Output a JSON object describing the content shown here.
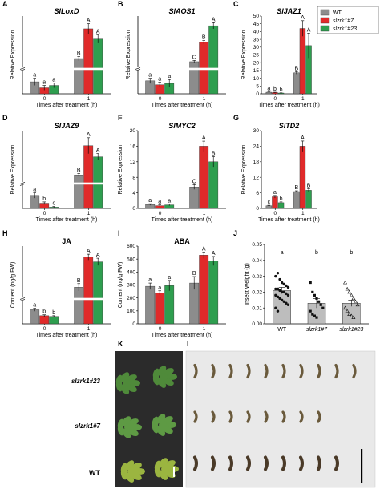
{
  "panel_labels": [
    "A",
    "B",
    "C",
    "D",
    "F",
    "G",
    "H",
    "I",
    "J",
    "K",
    "L"
  ],
  "legend": {
    "entries": [
      {
        "label": "WT",
        "color": "#8c8c8c"
      },
      {
        "label": "slzrk1#7",
        "color": "#e02a2a"
      },
      {
        "label": "slzrk1#23",
        "color": "#2e9e4f"
      }
    ]
  },
  "colors": {
    "WT": "#8c8c8c",
    "slzrk1#7": "#e02a2a",
    "slzrk1#23": "#2e9e4f"
  },
  "chart_data": [
    {
      "id": "A",
      "type": "bar",
      "title": "SlLoxD",
      "title_italic": true,
      "xlabel": "Times after treatment (h)",
      "ylabel": "Relative Expression",
      "categories": [
        "0",
        "1"
      ],
      "axis_break": true,
      "yticks": [],
      "series": [
        {
          "name": "WT",
          "values": [
            1.0,
            85
          ],
          "err": [
            0.3,
            6
          ],
          "sig": [
            "a",
            "B"
          ]
        },
        {
          "name": "slzrk1#7",
          "values": [
            0.5,
            172
          ],
          "err": [
            0.2,
            15
          ],
          "sig": [
            "a",
            "A"
          ]
        },
        {
          "name": "slzrk1#23",
          "values": [
            0.7,
            142
          ],
          "err": [
            0.2,
            12
          ],
          "sig": [
            "a",
            "A"
          ]
        }
      ]
    },
    {
      "id": "B",
      "type": "bar",
      "title": "SlAOS1",
      "title_italic": true,
      "xlabel": "Times after treatment (h)",
      "ylabel": "Relative Expression",
      "categories": [
        "0",
        "1"
      ],
      "axis_break": true,
      "yticks": [],
      "series": [
        {
          "name": "WT",
          "values": [
            1.0,
            80
          ],
          "err": [
            0.2,
            6
          ],
          "sig": [
            "a",
            "C"
          ]
        },
        {
          "name": "slzrk1#7",
          "values": [
            0.7,
            175
          ],
          "err": [
            0.2,
            8
          ],
          "sig": [
            "a",
            "B"
          ]
        },
        {
          "name": "slzrk1#23",
          "values": [
            0.8,
            255
          ],
          "err": [
            0.3,
            15
          ],
          "sig": [
            "a",
            "A"
          ]
        }
      ]
    },
    {
      "id": "C",
      "type": "bar",
      "title": "SlJAZ1",
      "title_italic": true,
      "xlabel": "Times after treatment (h)",
      "ylabel": "Relative Expression",
      "categories": [
        "0",
        "1"
      ],
      "axis_break": false,
      "yticks": [
        "0",
        "5",
        "10",
        "15",
        "20",
        "25",
        "30",
        "35",
        "40",
        "45",
        "50"
      ],
      "ylim": [
        0,
        50
      ],
      "series": [
        {
          "name": "WT",
          "values": [
            1.0,
            13.5
          ],
          "err": [
            0.2,
            0.8
          ],
          "sig": [
            "a",
            "B"
          ]
        },
        {
          "name": "slzrk1#7",
          "values": [
            0.8,
            42
          ],
          "err": [
            0.2,
            5
          ],
          "sig": [
            "b",
            "A"
          ]
        },
        {
          "name": "slzrk1#23",
          "values": [
            0.5,
            31
          ],
          "err": [
            0.1,
            8
          ],
          "sig": [
            "b",
            "A"
          ]
        }
      ]
    },
    {
      "id": "D",
      "type": "bar",
      "title": "SlJAZ9",
      "title_italic": true,
      "xlabel": "Times after treatment (h)",
      "ylabel": "Relative Expression",
      "categories": [
        "0",
        "1"
      ],
      "axis_break": true,
      "yticks": [],
      "series": [
        {
          "name": "WT",
          "values": [
            1.0,
            68
          ],
          "err": [
            0.2,
            5
          ],
          "sig": [
            "a",
            "B"
          ]
        },
        {
          "name": "slzrk1#7",
          "values": [
            0.4,
            160
          ],
          "err": [
            0.1,
            25
          ],
          "sig": [
            "b",
            "A"
          ]
        },
        {
          "name": "slzrk1#23",
          "values": [
            0.1,
            125
          ],
          "err": [
            0.05,
            10
          ],
          "sig": [
            "c",
            "A"
          ]
        }
      ]
    },
    {
      "id": "F",
      "type": "bar",
      "title": "SlMYC2",
      "title_italic": true,
      "xlabel": "Times after treatment (h)",
      "ylabel": "Relative Expression",
      "categories": [
        "0",
        "1"
      ],
      "axis_break": false,
      "yticks": [
        "0",
        "4",
        "8",
        "12",
        "16",
        "20"
      ],
      "ylim": [
        0,
        20
      ],
      "series": [
        {
          "name": "WT",
          "values": [
            1.0,
            5.5
          ],
          "err": [
            0.2,
            0.6
          ],
          "sig": [
            "a",
            "C"
          ]
        },
        {
          "name": "slzrk1#7",
          "values": [
            0.7,
            16
          ],
          "err": [
            0.2,
            1.3
          ],
          "sig": [
            "a",
            "A"
          ]
        },
        {
          "name": "slzrk1#23",
          "values": [
            0.9,
            12
          ],
          "err": [
            0.2,
            1.3
          ],
          "sig": [
            "a",
            "B"
          ]
        }
      ]
    },
    {
      "id": "G",
      "type": "bar",
      "title": "SlTD2",
      "title_italic": true,
      "xlabel": "Times after treatment (h)",
      "ylabel": "Relative Expression",
      "categories": [
        "0",
        "1"
      ],
      "axis_break": false,
      "yticks": [
        "0",
        "6",
        "12",
        "18",
        "24",
        "30"
      ],
      "ylim": [
        0,
        30
      ],
      "series": [
        {
          "name": "WT",
          "values": [
            1.0,
            6.5
          ],
          "err": [
            0.2,
            0.3
          ],
          "sig": [
            "c",
            "B"
          ]
        },
        {
          "name": "slzrk1#7",
          "values": [
            4.5,
            24
          ],
          "err": [
            0.5,
            2
          ],
          "sig": [
            "a",
            "A"
          ]
        },
        {
          "name": "slzrk1#23",
          "values": [
            2.2,
            7
          ],
          "err": [
            0.3,
            0.6
          ],
          "sig": [
            "b",
            "B"
          ]
        }
      ]
    },
    {
      "id": "H",
      "type": "bar",
      "title": "JA",
      "title_italic": false,
      "xlabel": "Times after treatment (h)",
      "ylabel": "Content (ng/g FW)",
      "categories": [
        "0",
        "1"
      ],
      "axis_break": true,
      "yticks": [],
      "series": [
        {
          "name": "WT",
          "values": [
            9.5,
            95
          ],
          "err": [
            1,
            10
          ],
          "sig": [
            "a",
            "B"
          ]
        },
        {
          "name": "slzrk1#7",
          "values": [
            5.5,
            178
          ],
          "err": [
            0.6,
            8
          ],
          "sig": [
            "b",
            "A"
          ]
        },
        {
          "name": "slzrk1#23",
          "values": [
            5.0,
            165
          ],
          "err": [
            0.5,
            10
          ],
          "sig": [
            "b",
            "A"
          ]
        }
      ]
    },
    {
      "id": "I",
      "type": "bar",
      "title": "ABA",
      "title_italic": false,
      "xlabel": "Times after treatment (h)",
      "ylabel": "Content (ng/g FW)",
      "categories": [
        "0",
        "1"
      ],
      "axis_break": false,
      "yticks": [
        "0",
        "100",
        "200",
        "300",
        "400",
        "500",
        "600"
      ],
      "ylim": [
        0,
        600
      ],
      "series": [
        {
          "name": "WT",
          "values": [
            290,
            315
          ],
          "err": [
            25,
            50
          ],
          "sig": [
            "a",
            "B"
          ]
        },
        {
          "name": "slzrk1#7",
          "values": [
            240,
            530
          ],
          "err": [
            15,
            25
          ],
          "sig": [
            "a",
            "A"
          ]
        },
        {
          "name": "slzrk1#23",
          "values": [
            295,
            485
          ],
          "err": [
            40,
            35
          ],
          "sig": [
            "a",
            "A"
          ]
        }
      ]
    },
    {
      "id": "J",
      "type": "scatter",
      "title": "",
      "ylabel": "Insect Weight (g)",
      "categories": [
        "WT",
        "slzrk1#7",
        "slzrk1#23"
      ],
      "yticks": [
        "0.00",
        "0.01",
        "0.02",
        "0.03",
        "0.04",
        "0.05"
      ],
      "ylim": [
        0,
        0.05
      ],
      "means": [
        0.021,
        0.013,
        0.013
      ],
      "err": [
        0.002,
        0.003,
        0.002
      ],
      "sig": [
        "a",
        "b",
        "b"
      ],
      "points": [
        [
          0.03,
          0.032,
          0.028,
          0.026,
          0.025,
          0.024,
          0.023,
          0.022,
          0.022,
          0.021,
          0.02,
          0.02,
          0.019,
          0.018,
          0.018,
          0.017,
          0.016,
          0.015,
          0.014,
          0.013,
          0.012,
          0.01,
          0.008
        ],
        [
          0.026,
          0.02,
          0.018,
          0.016,
          0.014,
          0.012,
          0.01,
          0.008,
          0.006,
          0.005,
          0.004
        ],
        [
          0.026,
          0.022,
          0.02,
          0.018,
          0.016,
          0.014,
          0.012,
          0.01,
          0.008,
          0.006,
          0.005,
          0.004
        ]
      ]
    },
    {
      "id": "K",
      "type": "photo",
      "labels": [
        "slzrk1#23",
        "slzrk1#7",
        "WT"
      ]
    },
    {
      "id": "L",
      "type": "photo",
      "rows": [
        10,
        8,
        9
      ]
    }
  ]
}
